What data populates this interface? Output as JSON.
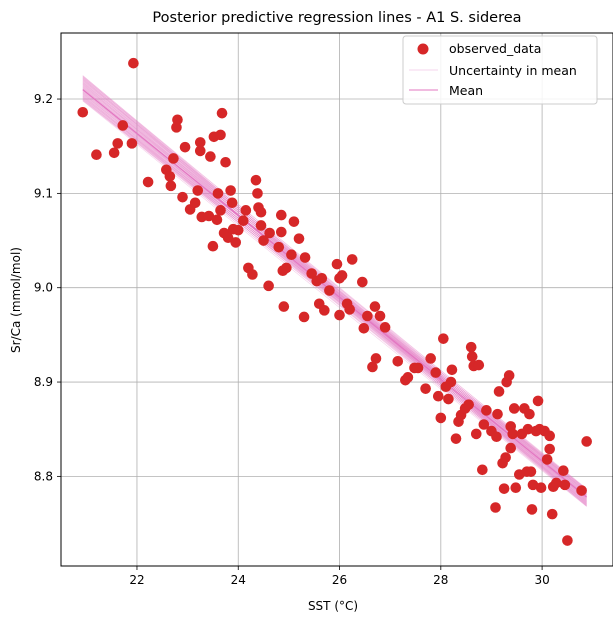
{
  "chart_data": {
    "type": "scatter",
    "title": "Posterior predictive regression lines - A1 S. siderea",
    "xlabel": "SST (°C)",
    "ylabel": "Sr/Ca (mmol/mol)",
    "xlim": [
      20.5,
      31.4
    ],
    "ylim": [
      8.705,
      9.27
    ],
    "xticks": [
      22,
      24,
      26,
      28,
      30
    ],
    "yticks": [
      8.8,
      8.9,
      9.0,
      9.1,
      9.2
    ],
    "xtick_labels": [
      "22",
      "24",
      "26",
      "28",
      "30"
    ],
    "ytick_labels": [
      "8.8",
      "8.9",
      "9.0",
      "9.1",
      "9.2"
    ],
    "grid": true,
    "legend_position": "top-right",
    "colors": {
      "observed": "#d62728",
      "uncertainty": "#e377c2",
      "mean": "#e377c2",
      "grid": "#b0b0b0"
    },
    "series": [
      {
        "name": "observed_data",
        "kind": "points",
        "points": [
          [
            20.93,
            9.186
          ],
          [
            21.2,
            9.141
          ],
          [
            21.55,
            9.143
          ],
          [
            21.62,
            9.153
          ],
          [
            21.72,
            9.172
          ],
          [
            21.9,
            9.153
          ],
          [
            21.93,
            9.238
          ],
          [
            22.22,
            9.112
          ],
          [
            22.58,
            9.125
          ],
          [
            22.65,
            9.118
          ],
          [
            22.67,
            9.108
          ],
          [
            22.72,
            9.137
          ],
          [
            22.78,
            9.17
          ],
          [
            22.8,
            9.178
          ],
          [
            22.9,
            9.096
          ],
          [
            22.95,
            9.149
          ],
          [
            23.05,
            9.083
          ],
          [
            23.15,
            9.09
          ],
          [
            23.2,
            9.103
          ],
          [
            23.25,
            9.145
          ],
          [
            23.25,
            9.154
          ],
          [
            23.28,
            9.075
          ],
          [
            23.42,
            9.076
          ],
          [
            23.45,
            9.139
          ],
          [
            23.5,
            9.044
          ],
          [
            23.52,
            9.16
          ],
          [
            23.58,
            9.072
          ],
          [
            23.6,
            9.1
          ],
          [
            23.65,
            9.082
          ],
          [
            23.65,
            9.162
          ],
          [
            23.68,
            9.185
          ],
          [
            23.72,
            9.058
          ],
          [
            23.75,
            9.133
          ],
          [
            23.8,
            9.053
          ],
          [
            23.85,
            9.103
          ],
          [
            23.88,
            9.09
          ],
          [
            23.9,
            9.062
          ],
          [
            23.95,
            9.048
          ],
          [
            24.0,
            9.061
          ],
          [
            24.1,
            9.071
          ],
          [
            24.15,
            9.082
          ],
          [
            24.2,
            9.021
          ],
          [
            24.28,
            9.014
          ],
          [
            24.35,
            9.114
          ],
          [
            24.38,
            9.1
          ],
          [
            24.4,
            9.085
          ],
          [
            24.45,
            9.08
          ],
          [
            24.45,
            9.066
          ],
          [
            24.5,
            9.05
          ],
          [
            24.6,
            9.002
          ],
          [
            24.62,
            9.058
          ],
          [
            24.8,
            9.043
          ],
          [
            24.85,
            9.077
          ],
          [
            24.85,
            9.059
          ],
          [
            24.88,
            9.018
          ],
          [
            24.9,
            8.98
          ],
          [
            24.95,
            9.021
          ],
          [
            25.05,
            9.035
          ],
          [
            25.1,
            9.07
          ],
          [
            25.2,
            9.052
          ],
          [
            25.3,
            8.969
          ],
          [
            25.32,
            9.032
          ],
          [
            25.45,
            9.015
          ],
          [
            25.55,
            9.007
          ],
          [
            25.6,
            8.983
          ],
          [
            25.65,
            9.01
          ],
          [
            25.7,
            8.976
          ],
          [
            25.8,
            8.997
          ],
          [
            25.95,
            9.025
          ],
          [
            26.0,
            9.01
          ],
          [
            26.0,
            8.971
          ],
          [
            26.05,
            9.013
          ],
          [
            26.15,
            8.983
          ],
          [
            26.2,
            8.977
          ],
          [
            26.25,
            9.03
          ],
          [
            26.45,
            9.006
          ],
          [
            26.48,
            8.957
          ],
          [
            26.55,
            8.97
          ],
          [
            26.65,
            8.916
          ],
          [
            26.7,
            8.98
          ],
          [
            26.72,
            8.925
          ],
          [
            26.8,
            8.97
          ],
          [
            26.9,
            8.958
          ],
          [
            27.15,
            8.922
          ],
          [
            27.3,
            8.902
          ],
          [
            27.35,
            8.905
          ],
          [
            27.48,
            8.915
          ],
          [
            27.55,
            8.915
          ],
          [
            27.7,
            8.893
          ],
          [
            27.8,
            8.925
          ],
          [
            27.9,
            8.91
          ],
          [
            27.95,
            8.885
          ],
          [
            28.0,
            8.862
          ],
          [
            28.05,
            8.946
          ],
          [
            28.1,
            8.895
          ],
          [
            28.15,
            8.882
          ],
          [
            28.2,
            8.9
          ],
          [
            28.22,
            8.913
          ],
          [
            28.3,
            8.84
          ],
          [
            28.35,
            8.858
          ],
          [
            28.4,
            8.865
          ],
          [
            28.48,
            8.872
          ],
          [
            28.55,
            8.876
          ],
          [
            28.6,
            8.937
          ],
          [
            28.62,
            8.927
          ],
          [
            28.65,
            8.917
          ],
          [
            28.7,
            8.845
          ],
          [
            28.75,
            8.918
          ],
          [
            28.82,
            8.807
          ],
          [
            28.85,
            8.855
          ],
          [
            28.9,
            8.87
          ],
          [
            29.0,
            8.848
          ],
          [
            29.08,
            8.767
          ],
          [
            29.1,
            8.842
          ],
          [
            29.12,
            8.866
          ],
          [
            29.15,
            8.89
          ],
          [
            29.22,
            8.814
          ],
          [
            29.25,
            8.787
          ],
          [
            29.28,
            8.82
          ],
          [
            29.3,
            8.9
          ],
          [
            29.35,
            8.907
          ],
          [
            29.38,
            8.853
          ],
          [
            29.38,
            8.83
          ],
          [
            29.42,
            8.845
          ],
          [
            29.45,
            8.872
          ],
          [
            29.48,
            8.788
          ],
          [
            29.55,
            8.802
          ],
          [
            29.6,
            8.845
          ],
          [
            29.65,
            8.872
          ],
          [
            29.7,
            8.805
          ],
          [
            29.72,
            8.85
          ],
          [
            29.75,
            8.866
          ],
          [
            29.78,
            8.805
          ],
          [
            29.8,
            8.765
          ],
          [
            29.82,
            8.791
          ],
          [
            29.88,
            8.848
          ],
          [
            29.92,
            8.88
          ],
          [
            29.95,
            8.85
          ],
          [
            29.98,
            8.788
          ],
          [
            30.05,
            8.848
          ],
          [
            30.1,
            8.818
          ],
          [
            30.15,
            8.843
          ],
          [
            30.15,
            8.829
          ],
          [
            30.2,
            8.76
          ],
          [
            30.22,
            8.789
          ],
          [
            30.28,
            8.793
          ],
          [
            30.42,
            8.806
          ],
          [
            30.45,
            8.791
          ],
          [
            30.5,
            8.732
          ],
          [
            30.78,
            8.785
          ],
          [
            30.88,
            8.837
          ]
        ]
      },
      {
        "name": "Uncertainty in mean",
        "kind": "line-band",
        "x": [
          20.93,
          30.88
        ],
        "upper": [
          9.225,
          8.787
        ],
        "lower": [
          9.198,
          8.768
        ]
      },
      {
        "name": "Mean",
        "kind": "line",
        "x": [
          20.93,
          30.88
        ],
        "y": [
          9.21,
          8.778
        ]
      }
    ]
  }
}
